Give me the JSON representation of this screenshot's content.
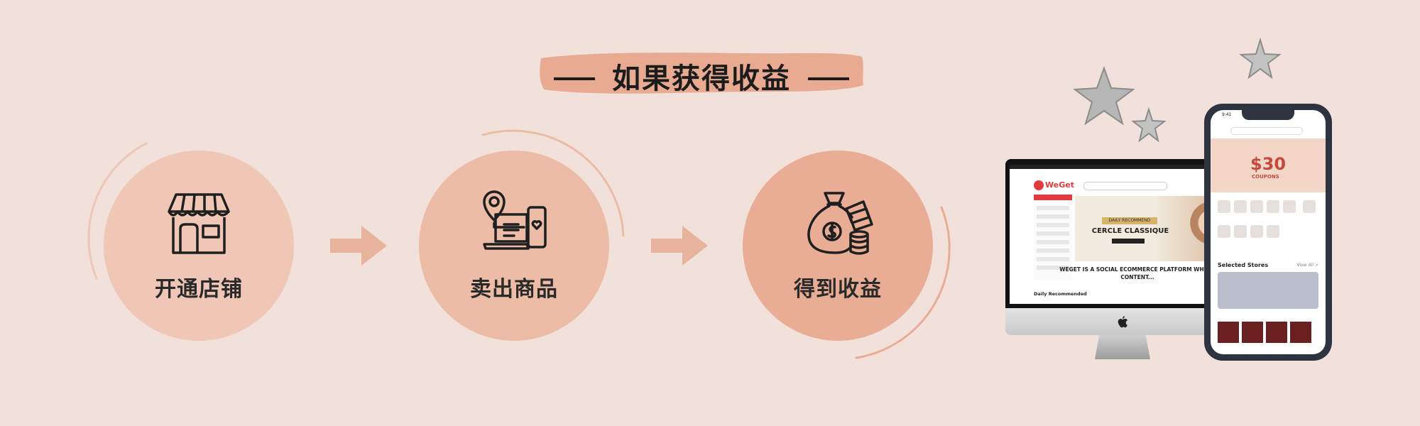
{
  "title": "如果获得收益",
  "steps": [
    {
      "label": "开通店铺",
      "icon": "store-icon"
    },
    {
      "label": "卖出商品",
      "icon": "location-laptop-phone-icon"
    },
    {
      "label": "得到收益",
      "icon": "money-bag-icon"
    }
  ],
  "devices": {
    "imac": {
      "logo": "WeGet",
      "banner_tag": "DAILY RECOMMEND",
      "banner_title": "CERCLE CLASSIQUE",
      "slogan": "WEGET IS A SOCIAL ECOMMERCE PLATFORM WHERE CONTENT...",
      "section": "Daily Recommended"
    },
    "phone": {
      "time": "9:41",
      "coupon_amount": "$30",
      "coupon_label": "COUPONS",
      "section": "Selected Stores",
      "view_all": "View All >"
    }
  },
  "colors": {
    "background": "#f2e1da",
    "circle1": "#f0c7b6",
    "circle2": "#ecbca7",
    "circle3": "#e8ad94",
    "accent": "#e4a58c"
  }
}
